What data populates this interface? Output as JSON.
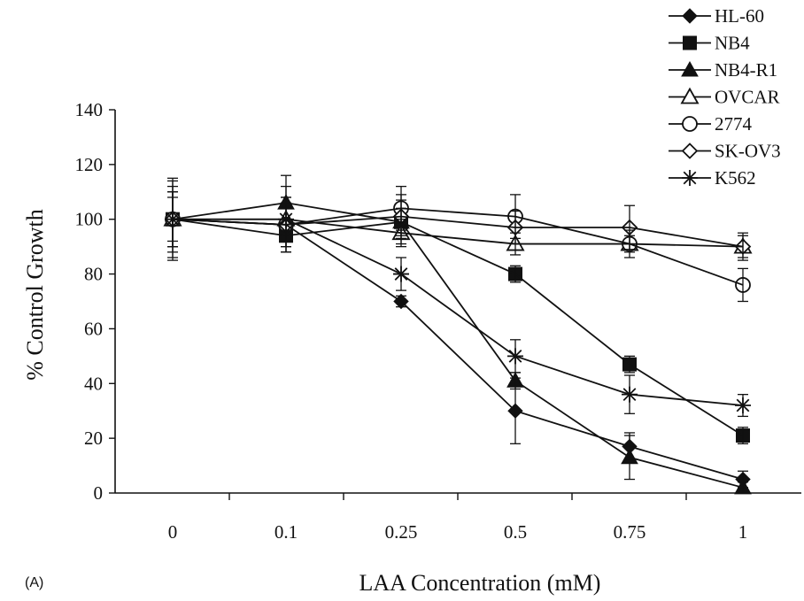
{
  "chart_data": {
    "type": "line",
    "panel_label": "(A)",
    "xlabel": "LAA Concentration (mM)",
    "ylabel": "% Control Growth",
    "categories": [
      "0",
      "0.1",
      "0.25",
      "0.5",
      "0.75",
      "1"
    ],
    "ylim": [
      0,
      140
    ],
    "yticks": [
      0,
      20,
      40,
      60,
      80,
      100,
      120,
      140
    ],
    "grid": false,
    "legend_position": "top-right",
    "series": [
      {
        "name": "HL-60",
        "marker": "diamond-filled",
        "values": [
          100,
          98,
          70,
          30,
          17,
          5
        ],
        "errors": [
          12,
          8,
          2,
          12,
          5,
          3
        ]
      },
      {
        "name": "NB4",
        "marker": "square-filled",
        "values": [
          100,
          94,
          99,
          80,
          47,
          21
        ],
        "errors": [
          10,
          6,
          5,
          3,
          3,
          3
        ]
      },
      {
        "name": "NB4-R1",
        "marker": "triangle-filled",
        "values": [
          100,
          106,
          99,
          41,
          13,
          2
        ],
        "errors": [
          14,
          10,
          8,
          3,
          8,
          2
        ]
      },
      {
        "name": "OVCAR",
        "marker": "triangle-open",
        "values": [
          100,
          100,
          95,
          91,
          91,
          90
        ],
        "errors": [
          10,
          8,
          5,
          4,
          3,
          4
        ]
      },
      {
        "name": "2774",
        "marker": "circle-open",
        "values": [
          100,
          98,
          104,
          101,
          91,
          76
        ],
        "errors": [
          8,
          10,
          8,
          8,
          5,
          6
        ]
      },
      {
        "name": "SK-OV3",
        "marker": "diamond-open",
        "values": [
          100,
          98,
          101,
          97,
          97,
          90
        ],
        "errors": [
          10,
          8,
          8,
          6,
          8,
          5
        ]
      },
      {
        "name": "K562",
        "marker": "star",
        "values": [
          100,
          100,
          80,
          50,
          36,
          32
        ],
        "errors": [
          15,
          12,
          6,
          6,
          7,
          4
        ]
      }
    ]
  }
}
